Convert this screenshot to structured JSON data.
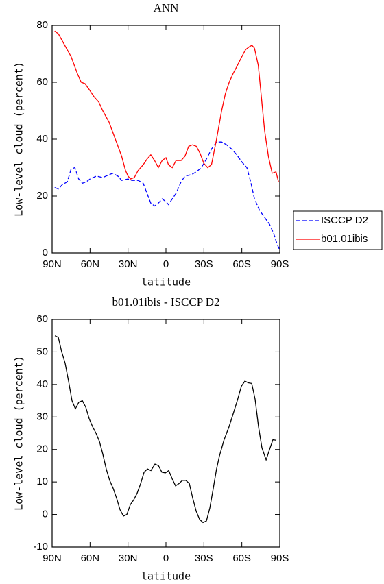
{
  "chart_data": [
    {
      "type": "line",
      "title": "ANN",
      "x_label": "latitude",
      "y_label": "Low-level cloud (percent)",
      "xlim": [
        90,
        -90
      ],
      "xticks": [
        {
          "value": 90,
          "label": "90N"
        },
        {
          "value": 60,
          "label": "60N"
        },
        {
          "value": 30,
          "label": "30N"
        },
        0,
        {
          "value": -30,
          "label": "30S"
        },
        {
          "value": -60,
          "label": "60S"
        },
        {
          "value": -90,
          "label": "90S"
        }
      ],
      "ylim": [
        0,
        80
      ],
      "yticks": [
        0,
        20,
        40,
        60,
        80
      ],
      "legend": "right",
      "series": [
        {
          "name": "ISCCP D2",
          "color": "#0000ff",
          "dash": "dashed",
          "x": [
            88,
            85,
            82,
            78,
            75,
            72,
            69,
            66,
            63,
            60,
            55,
            50,
            45,
            42,
            38,
            35,
            30,
            27,
            22,
            18,
            15,
            12,
            9,
            6,
            3,
            0,
            -2,
            -5,
            -8,
            -12,
            -15,
            -20,
            -24,
            -28,
            -32,
            -36,
            -40,
            -44,
            -48,
            -52,
            -56,
            -60,
            -64,
            -67,
            -70,
            -74,
            -78,
            -82,
            -85,
            -88,
            -89.5
          ],
          "values": [
            23,
            22.5,
            24,
            25,
            29.5,
            30,
            26,
            24.5,
            25,
            26,
            27,
            26.5,
            27.5,
            28,
            27,
            25.5,
            26,
            25.5,
            25.5,
            24.5,
            21,
            17.5,
            16.5,
            17.5,
            19,
            18,
            17,
            19,
            21,
            25,
            27,
            27.5,
            28.5,
            30,
            33,
            36.5,
            39,
            39,
            38,
            36.5,
            34.5,
            32,
            30,
            25,
            19,
            15,
            12.5,
            10,
            7,
            3,
            1.5
          ]
        },
        {
          "name": "b01.01ibis",
          "color": "#ff0000",
          "dash": "solid",
          "x": [
            88,
            85,
            80,
            75,
            70,
            67,
            64,
            60,
            57,
            53,
            50,
            45,
            40,
            35,
            32,
            30,
            28,
            25,
            22,
            18,
            15,
            12,
            9,
            6,
            3,
            0,
            -2,
            -5,
            -8,
            -12,
            -15,
            -18,
            -21,
            -24,
            -27,
            -30,
            -33,
            -36,
            -40,
            -44,
            -47,
            -50,
            -53,
            -56,
            -60,
            -63,
            -66,
            -68,
            -70,
            -73,
            -75,
            -78,
            -81,
            -84,
            -87,
            -89
          ],
          "values": [
            78,
            77,
            73,
            69,
            63,
            60,
            59.5,
            57,
            55,
            53,
            50,
            46,
            40,
            34,
            29,
            27,
            26,
            26.5,
            29,
            31,
            33,
            34.5,
            32.5,
            30,
            32.5,
            33.5,
            31,
            30,
            32.5,
            32.5,
            34,
            37.5,
            38,
            37.5,
            35,
            31.5,
            30,
            31,
            40,
            50,
            56,
            60,
            63,
            65.5,
            69,
            71.5,
            72.5,
            73,
            72,
            66,
            57,
            43,
            34,
            28,
            28.5,
            25
          ]
        }
      ]
    },
    {
      "type": "line",
      "title": "b01.01ibis - ISCCP D2",
      "x_label": "latitude",
      "y_label": "Low-level cloud (percent)",
      "xlim": [
        90,
        -90
      ],
      "xticks": [
        {
          "value": 90,
          "label": "90N"
        },
        {
          "value": 60,
          "label": "60N"
        },
        {
          "value": 30,
          "label": "30N"
        },
        0,
        {
          "value": -30,
          "label": "30S"
        },
        {
          "value": -60,
          "label": "60S"
        },
        {
          "value": -90,
          "label": "90S"
        }
      ],
      "ylim": [
        -10,
        60
      ],
      "yticks": [
        -10,
        0,
        10,
        20,
        30,
        40,
        50,
        60
      ],
      "series": [
        {
          "color": "#000000",
          "dash": "solid",
          "x": [
            87.8,
            85.1,
            82.4,
            79.7,
            77,
            74.3,
            71.6,
            68.9,
            66.1,
            63.4,
            60.7,
            58,
            55.3,
            52.6,
            49.9,
            47.2,
            44.5,
            41.7,
            39,
            36.3,
            33.6,
            30.9,
            28.2,
            25.5,
            22.8,
            20,
            17.3,
            14.6,
            11.9,
            8.7,
            5.9,
            3.2,
            0.5,
            -2.2,
            -4.9,
            -7.6,
            -10.3,
            -13,
            -15.7,
            -18.5,
            -21.2,
            -23.9,
            -26.6,
            -29.3,
            -32,
            -34.7,
            -37.4,
            -40,
            -42.3,
            -46,
            -49.9,
            -53.2,
            -56.4,
            -59.7,
            -62.4,
            -65.1,
            -67.8,
            -70.5,
            -73.2,
            -75.9,
            -79.2,
            -81.9,
            -84.6,
            -87.3
          ],
          "values": [
            55,
            54.5,
            50,
            46.5,
            41,
            35,
            32.5,
            34.5,
            35,
            33,
            29.5,
            27,
            25,
            22.5,
            18.5,
            14,
            10.5,
            8,
            5,
            1.5,
            -0.5,
            0,
            3,
            4.5,
            6.5,
            9.5,
            13,
            14,
            13.5,
            15.5,
            15,
            13,
            12.8,
            13.5,
            11,
            8.8,
            9.5,
            10.5,
            10.5,
            9.5,
            5,
            1,
            -1.5,
            -2.5,
            -2,
            2,
            8,
            14,
            18,
            23,
            27,
            31,
            35,
            39.5,
            41,
            40.5,
            40.3,
            35.5,
            27,
            20.5,
            16.8,
            20,
            23,
            22.8
          ]
        }
      ]
    }
  ]
}
